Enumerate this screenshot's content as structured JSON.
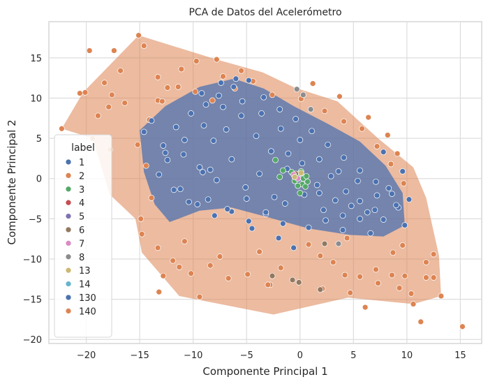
{
  "chart_data": {
    "type": "scatter",
    "title": "PCA de Datos del Acelerómetro",
    "xlabel": "Componente Principal 1",
    "ylabel": "Componente Principal 2",
    "xlim": [
      -23.5,
      17.0
    ],
    "ylim": [
      -20.5,
      19.5
    ],
    "xticks": [
      -20,
      -15,
      -10,
      -5,
      0,
      5,
      10,
      15
    ],
    "yticks": [
      -20,
      -15,
      -10,
      -5,
      0,
      5,
      10,
      15
    ],
    "grid": true,
    "legend": {
      "title": "label",
      "position": "left",
      "entries": [
        {
          "label": "1",
          "color": "#4c72b0"
        },
        {
          "label": "2",
          "color": "#dd8452"
        },
        {
          "label": "3",
          "color": "#55a868"
        },
        {
          "label": "4",
          "color": "#c44e52"
        },
        {
          "label": "5",
          "color": "#8172b3"
        },
        {
          "label": "6",
          "color": "#937860"
        },
        {
          "label": "7",
          "color": "#da8bc3"
        },
        {
          "label": "8",
          "color": "#8c8c8c"
        },
        {
          "label": "13",
          "color": "#ccb974"
        },
        {
          "label": "14",
          "color": "#64b5cd"
        },
        {
          "label": "130",
          "color": "#4c72b0"
        },
        {
          "label": "140",
          "color": "#dd8452"
        }
      ]
    },
    "series": [
      {
        "name": "2",
        "color": "#dd8452",
        "x": [
          -22.3,
          -20.6,
          -20.1,
          -19.7,
          -18.9,
          -18.3,
          -17.9,
          -17.6,
          -15.1,
          -14.6,
          -16.4,
          -13.3,
          -16.8,
          -17.4,
          -9.7,
          -7.8,
          -11.1,
          -13.3,
          -12.8,
          -19.4,
          -17.8,
          -14.4,
          -14.9,
          -11.3,
          -13.2,
          -9.4,
          -2.8,
          2.1,
          4.2,
          6.1,
          7.3,
          8.6,
          9.3,
          10.4,
          11.8,
          12.5,
          15.2,
          13.2,
          12.5,
          11.8,
          10.6,
          11.3,
          9.8,
          9.6,
          8.7,
          7.1,
          5.6,
          4.7,
          3.1,
          1.9,
          -1.8,
          -3.0,
          -4.9,
          -6.7,
          -8.4,
          -10.2,
          -11.9,
          -13.3,
          -14.8,
          -7.2,
          -12.4,
          -5.5,
          1.2,
          3.7,
          6.4,
          8.2,
          9.1,
          -15.2,
          -14.1,
          -12.9,
          -11.4,
          -9.8,
          -8.2,
          -6.1,
          -4.4,
          -2.6,
          0.1,
          2.3,
          4.1,
          5.8,
          7.2,
          8.5,
          9.7,
          -13.9,
          -10.8,
          -7.5,
          -3.8,
          0.8,
          4.4
        ],
        "y": [
          6.2,
          10.6,
          10.7,
          15.9,
          7.8,
          11.9,
          8.9,
          10.4,
          17.8,
          16.5,
          9.4,
          12.6,
          13.4,
          15.9,
          14.6,
          14.8,
          13.6,
          9.7,
          -12.1,
          5.0,
          3.6,
          1.6,
          -5.0,
          -11.0,
          -14.1,
          -14.7,
          -13.2,
          -13.7,
          -12.0,
          -16.0,
          -13.0,
          -12.0,
          -13.6,
          -14.3,
          -12.3,
          -12.3,
          -18.4,
          -14.6,
          -9.4,
          -10.4,
          -15.6,
          -17.8,
          -12.1,
          -8.3,
          -9.2,
          -11.3,
          -12.2,
          -14.2,
          -10.4,
          -9.6,
          -11.1,
          -13.2,
          -11.9,
          -12.4,
          -10.8,
          -11.8,
          -10.2,
          -8.6,
          -6.9,
          12.7,
          11.3,
          13.4,
          11.8,
          10.2,
          7.6,
          5.4,
          3.1,
          4.2,
          7.3,
          9.6,
          11.4,
          10.8,
          9.7,
          11.2,
          12.1,
          10.4,
          9.9,
          8.4,
          7.1,
          6.2,
          4.0,
          1.8,
          -0.6,
          -2.4,
          -7.8,
          -9.7,
          -9.1,
          -8.2,
          -7.4
        ]
      },
      {
        "name": "1",
        "color": "#4c72b0",
        "x": [
          -14.6,
          -13.9,
          -12.8,
          -12.4,
          -11.6,
          -10.9,
          -10.2,
          -9.4,
          -8.8,
          -8.1,
          -7.6,
          -6.9,
          -6.2,
          -5.5,
          -4.8,
          -4.1,
          -3.4,
          -2.7,
          -1.9,
          -1.2,
          -0.4,
          0.3,
          1.1,
          1.8,
          2.6,
          3.3,
          4.1,
          4.8,
          5.6,
          6.3,
          7.1,
          7.8,
          8.6,
          9.2,
          9.8,
          -13.2,
          -11.8,
          -10.4,
          -9.1,
          -7.8,
          -6.4,
          -5.1,
          -3.8,
          -2.4,
          -1.1,
          0.2,
          1.6,
          2.9,
          4.3,
          5.6,
          7.0,
          8.3,
          -12.6,
          -10.8,
          -9.0,
          -7.2,
          -5.4,
          -3.6,
          -1.8,
          0.0,
          1.8,
          3.6,
          5.4,
          7.2,
          9.0,
          -11.2,
          -9.6,
          -8.0,
          -6.4,
          -4.8,
          -3.2,
          -1.6,
          0.8,
          2.4,
          4.0,
          5.6,
          -8.6,
          -6.8,
          -5.0,
          -3.2,
          -1.4,
          0.4,
          2.2,
          4.0,
          -7.4,
          -9.2,
          -6.0,
          -8.4,
          7.8,
          9.6,
          10.2,
          -2.0,
          -0.6,
          -4.5,
          6.6
        ],
        "y": [
          5.8,
          7.2,
          4.1,
          2.3,
          6.4,
          3.0,
          8.1,
          1.4,
          9.2,
          4.7,
          10.3,
          6.1,
          11.4,
          7.8,
          12.2,
          5.3,
          10.1,
          3.4,
          8.6,
          1.2,
          7.4,
          -0.6,
          5.9,
          -1.8,
          4.2,
          -2.7,
          2.6,
          -3.4,
          1.0,
          -4.2,
          -0.4,
          -5.1,
          -1.9,
          -3.6,
          -5.8,
          0.5,
          -1.4,
          -2.9,
          0.8,
          -0.2,
          2.4,
          -1.1,
          0.6,
          -2.3,
          3.1,
          1.9,
          -0.8,
          0.3,
          -1.6,
          -2.8,
          -3.9,
          -1.2,
          3.2,
          4.8,
          6.6,
          8.9,
          9.6,
          8.1,
          6.2,
          4.8,
          2.4,
          0.9,
          -0.3,
          -2.1,
          -3.3,
          -1.3,
          -3.2,
          -4.6,
          -4.1,
          -5.3,
          -4.4,
          -5.6,
          -6.1,
          -5.2,
          -6.4,
          -5.0,
          -2.6,
          -3.8,
          -2.5,
          -4.2,
          -3.1,
          -2.0,
          -3.9,
          -4.6,
          11.9,
          10.6,
          12.4,
          1.1,
          3.3,
          0.9,
          -2.6,
          -7.4,
          -8.6,
          -6.2,
          -6.8
        ]
      },
      {
        "name": "3",
        "color": "#55a868",
        "x": [
          -2.3,
          -1.6,
          -1.9,
          -0.8,
          -0.3,
          0.1,
          0.4,
          0.7,
          -0.5,
          0.2,
          0.5,
          -0.1,
          0.3,
          0.6,
          -0.2,
          0.0
        ],
        "y": [
          2.3,
          1.0,
          0.2,
          0.8,
          0.4,
          0.9,
          0.2,
          -0.4,
          -0.3,
          -0.7,
          -1.0,
          0.6,
          0.0,
          0.3,
          -0.9,
          -1.8
        ]
      },
      {
        "name": "6",
        "color": "#937860",
        "x": [
          -0.7,
          -2.6,
          1.9,
          -0.1,
          -0.4,
          2.3
        ],
        "y": [
          -12.6,
          -12.1,
          -13.8,
          -12.9,
          0.6,
          -8.1
        ]
      },
      {
        "name": "8",
        "color": "#8c8c8c",
        "x": [
          -0.3,
          0.3,
          1.0,
          3.6
        ],
        "y": [
          11.1,
          10.4,
          8.6,
          -8.1
        ]
      },
      {
        "name": "7",
        "color": "#da8bc3",
        "x": [
          -0.6,
          -0.2
        ],
        "y": [
          0.5,
          0.0
        ]
      },
      {
        "name": "13",
        "color": "#ccb974",
        "x": [
          -0.5,
          0.1
        ],
        "y": [
          0.2,
          0.7
        ]
      }
    ]
  }
}
